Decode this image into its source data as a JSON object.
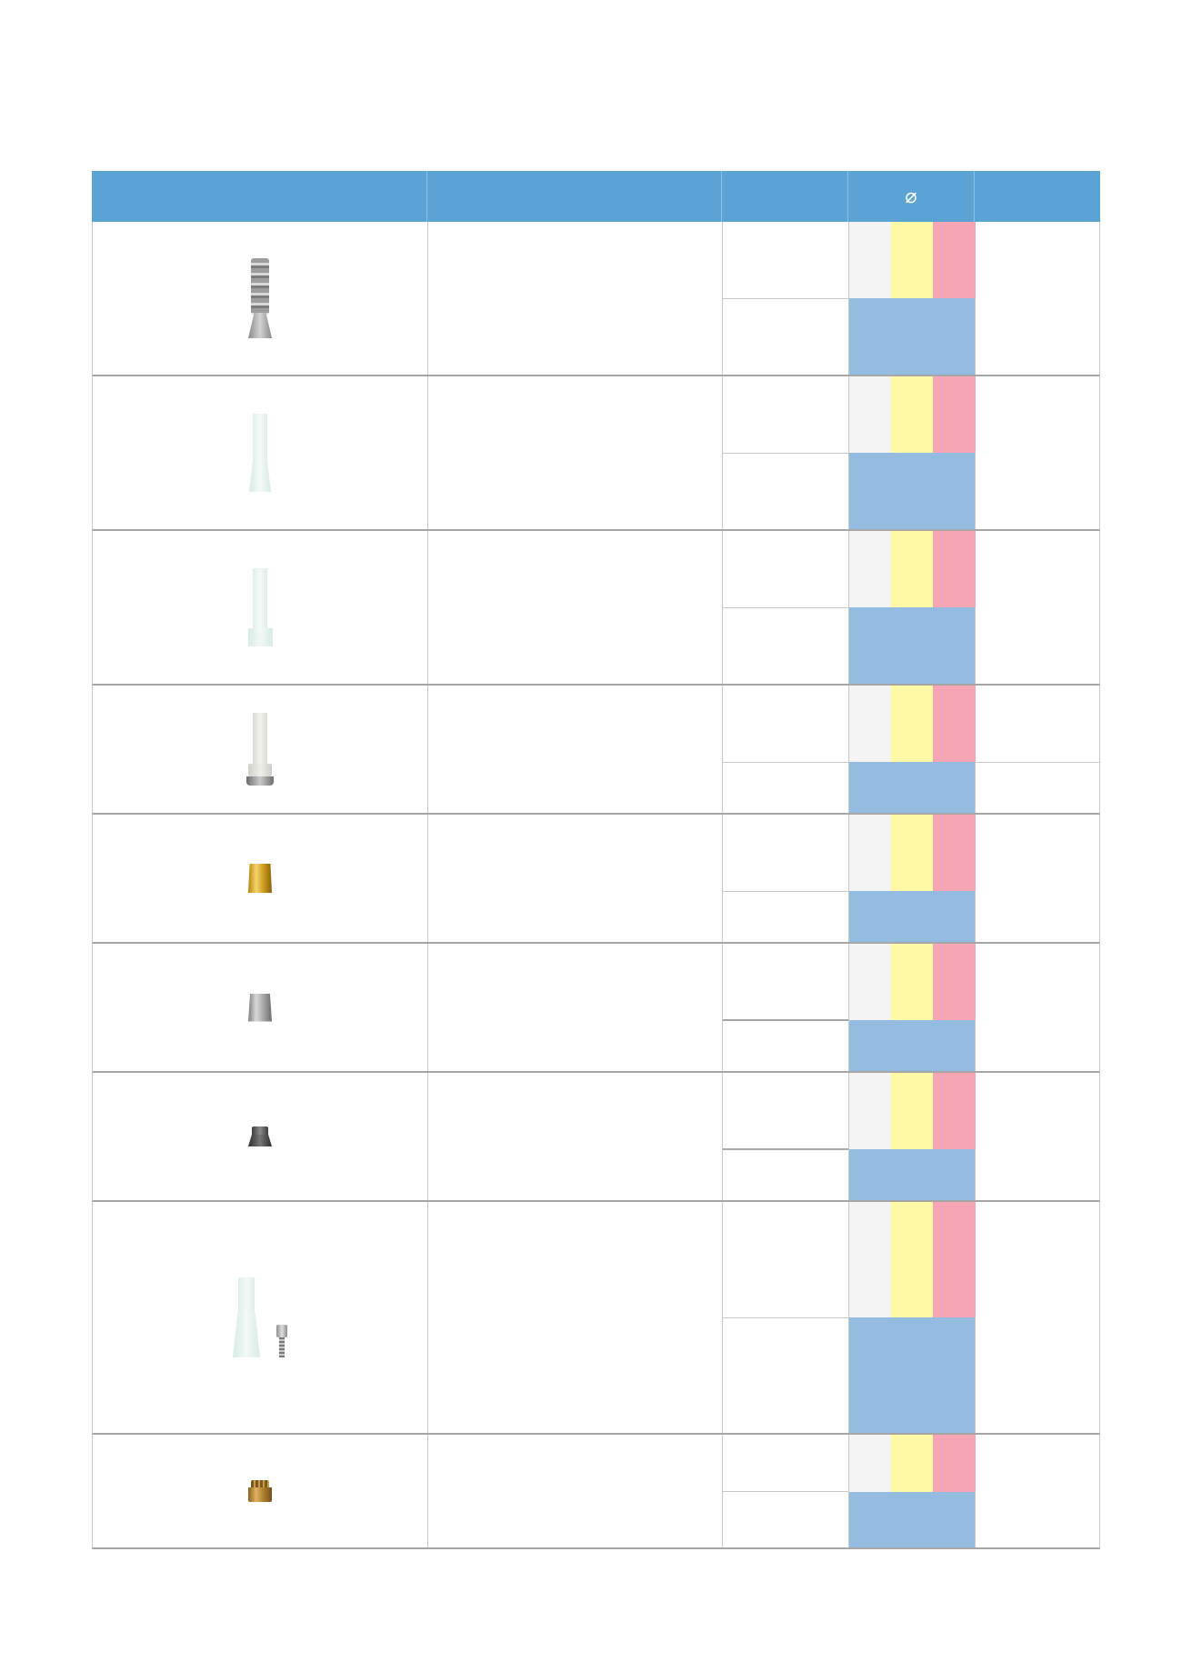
{
  "table": {
    "header": {
      "col_image": "",
      "col_description": "",
      "col_reference": "",
      "col_diameter": "⌀",
      "col_extra": ""
    },
    "rows": [
      {
        "product_icon": "threaded-titanium-abutment-icon",
        "platform_colors": [
          "#f4f4f4",
          "#fff9a5",
          "#f6a5b4"
        ],
        "band_color": "#93bce0"
      },
      {
        "product_icon": "plastic-burnout-abutment-icon",
        "platform_colors": [
          "#f4f4f4",
          "#fff9a5",
          "#f6a5b4"
        ],
        "band_color": "#93bce0"
      },
      {
        "product_icon": "plastic-collar-abutment-icon",
        "platform_colors": [
          "#f4f4f4",
          "#fff9a5",
          "#f6a5b4"
        ],
        "band_color": "#93bce0"
      },
      {
        "product_icon": "peek-temporary-abutment-icon",
        "platform_colors": [
          "#f4f4f4",
          "#fff9a5",
          "#f6a5b4"
        ],
        "band_color": "#93bce0"
      },
      {
        "product_icon": "gold-cap-icon",
        "platform_colors": [
          "#f4f4f4",
          "#fff9a5",
          "#f6a5b4"
        ],
        "band_color": "#93bce0"
      },
      {
        "product_icon": "titanium-cap-icon",
        "platform_colors": [
          "#f4f4f4",
          "#fff9a5",
          "#f6a5b4"
        ],
        "band_color": "#93bce0"
      },
      {
        "product_icon": "dark-healing-cap-icon",
        "platform_colors": [
          "#f4f4f4",
          "#fff9a5",
          "#f6a5b4"
        ],
        "band_color": "#93bce0"
      },
      {
        "product_icon": "burnout-abutment-with-screw-icon",
        "platform_colors": [
          "#f4f4f4",
          "#fff9a5",
          "#f6a5b4"
        ],
        "band_color": "#93bce0"
      },
      {
        "product_icon": "bronze-cap-icon",
        "platform_colors": [
          "#f4f4f4",
          "#fff9a5",
          "#f6a5b4"
        ],
        "band_color": "#93bce0"
      }
    ]
  },
  "colors": {
    "header_background": "#5ba3d4",
    "row_border": "#a6a6a6"
  }
}
